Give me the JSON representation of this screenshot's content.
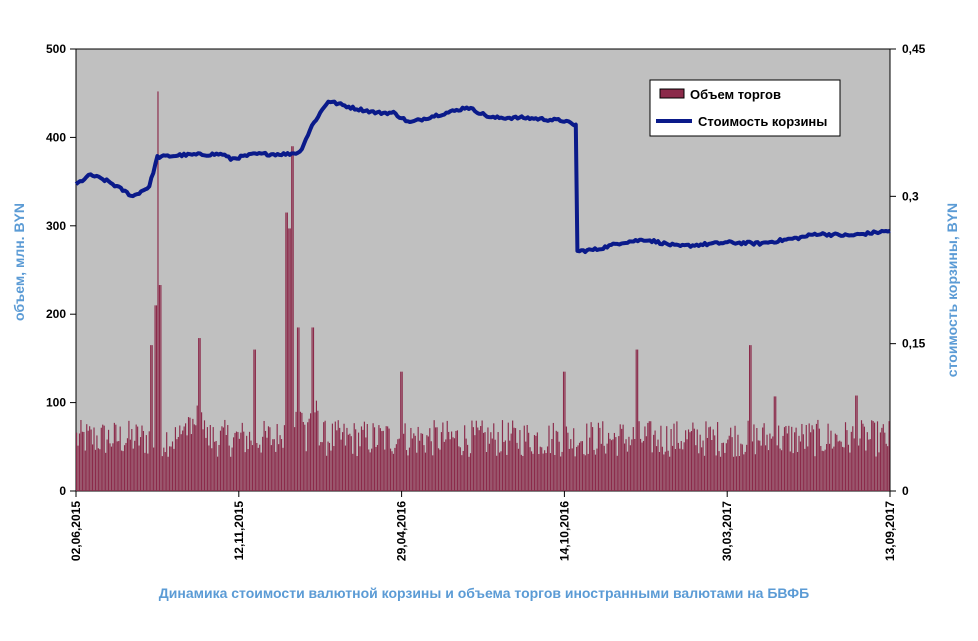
{
  "chart_data": {
    "type": "bar+line",
    "title": "Динамика стоимости валютной корзины и объема торгов иностранными валютами на БВФБ",
    "ylabel_left": "объем, млн. BYN",
    "ylabel_right": "стоимость корзины, BYN",
    "ylim_left": [
      0,
      500
    ],
    "ylim_right": [
      0,
      0.45
    ],
    "yticks_left": [
      "0",
      "100",
      "200",
      "300",
      "400",
      "500"
    ],
    "yticks_right": [
      "0",
      "0,15",
      "0,3",
      "0,45"
    ],
    "yticks_right_values": [
      0,
      0.15,
      0.3,
      0.45
    ],
    "x_tick_labels": [
      "02,06,2015",
      "12,11,2015",
      "29,04,2016",
      "14,10,2016",
      "30,03,2017",
      "13,09,2017"
    ],
    "x_tick_fraction": [
      0.0,
      0.2,
      0.4,
      0.6,
      0.8,
      1.0
    ],
    "legend_position": "top-right",
    "grid": false,
    "colors": {
      "plot_bg": "#c0c0c0",
      "bar": "#8b2a4a",
      "line": "#0a1a8a",
      "title": "#5b9bd5"
    },
    "series": [
      {
        "name": "Объем торгов",
        "kind": "bar",
        "axis": "left",
        "peaks": [
          {
            "t": 0.1,
            "value": 452
          },
          {
            "t": 0.103,
            "value": 233
          },
          {
            "t": 0.097,
            "value": 210
          },
          {
            "t": 0.093,
            "value": 165
          },
          {
            "t": 0.152,
            "value": 173
          },
          {
            "t": 0.22,
            "value": 160
          },
          {
            "t": 0.258,
            "value": 315
          },
          {
            "t": 0.262,
            "value": 297
          },
          {
            "t": 0.266,
            "value": 390
          },
          {
            "t": 0.272,
            "value": 185
          },
          {
            "t": 0.29,
            "value": 185
          },
          {
            "t": 0.4,
            "value": 135
          },
          {
            "t": 0.6,
            "value": 135
          },
          {
            "t": 0.69,
            "value": 160
          },
          {
            "t": 0.83,
            "value": 165
          },
          {
            "t": 0.86,
            "value": 107
          },
          {
            "t": 0.96,
            "value": 108
          }
        ],
        "base_level": 70
      },
      {
        "name": "Стоимость корзины",
        "kind": "line",
        "axis": "right",
        "points": [
          [
            0.0,
            0.312
          ],
          [
            0.018,
            0.322
          ],
          [
            0.04,
            0.315
          ],
          [
            0.07,
            0.3
          ],
          [
            0.09,
            0.31
          ],
          [
            0.1,
            0.34
          ],
          [
            0.13,
            0.342
          ],
          [
            0.18,
            0.343
          ],
          [
            0.19,
            0.338
          ],
          [
            0.22,
            0.343
          ],
          [
            0.26,
            0.343
          ],
          [
            0.275,
            0.345
          ],
          [
            0.29,
            0.372
          ],
          [
            0.3,
            0.385
          ],
          [
            0.31,
            0.397
          ],
          [
            0.34,
            0.39
          ],
          [
            0.37,
            0.385
          ],
          [
            0.39,
            0.385
          ],
          [
            0.41,
            0.375
          ],
          [
            0.44,
            0.382
          ],
          [
            0.47,
            0.388
          ],
          [
            0.48,
            0.391
          ],
          [
            0.51,
            0.38
          ],
          [
            0.55,
            0.38
          ],
          [
            0.6,
            0.377
          ],
          [
            0.61,
            0.373
          ],
          [
            0.614,
            0.373
          ],
          [
            0.616,
            0.244
          ],
          [
            0.64,
            0.246
          ],
          [
            0.67,
            0.253
          ],
          [
            0.7,
            0.256
          ],
          [
            0.74,
            0.249
          ],
          [
            0.8,
            0.253
          ],
          [
            0.84,
            0.252
          ],
          [
            0.89,
            0.258
          ],
          [
            0.91,
            0.262
          ],
          [
            0.95,
            0.26
          ],
          [
            1.0,
            0.265
          ]
        ]
      }
    ]
  }
}
